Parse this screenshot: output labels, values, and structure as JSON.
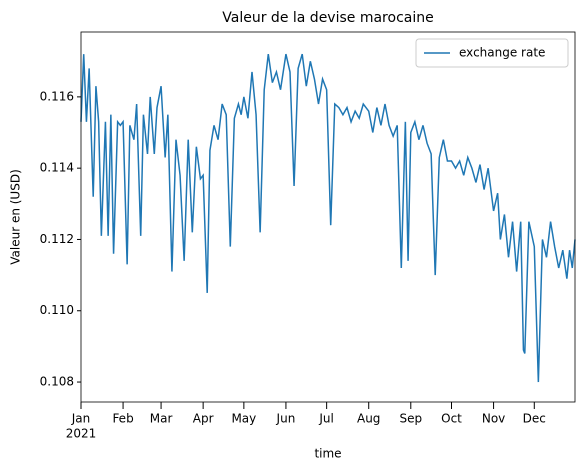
{
  "chart_data": {
    "type": "line",
    "title": "Valeur de la devise marocaine",
    "x_label": "time",
    "y_label": "Valeur en (USD)",
    "year_label": "2021",
    "legend": "upper right",
    "xlim": [
      0,
      364
    ],
    "xticks": [
      {
        "value": 0,
        "label": "Jan"
      },
      {
        "value": 31,
        "label": "Feb"
      },
      {
        "value": 59,
        "label": "Mar"
      },
      {
        "value": 90,
        "label": "Apr"
      },
      {
        "value": 120,
        "label": "May"
      },
      {
        "value": 151,
        "label": "Jun"
      },
      {
        "value": 181,
        "label": "Jul"
      },
      {
        "value": 212,
        "label": "Aug"
      },
      {
        "value": 243,
        "label": "Sep"
      },
      {
        "value": 273,
        "label": "Oct"
      },
      {
        "value": 304,
        "label": "Nov"
      },
      {
        "value": 334,
        "label": "Dec"
      }
    ],
    "ylim": [
      0.10744,
      0.11782
    ],
    "yticks": [
      0.108,
      {
        "value": 0.11,
        "label": "0.110"
      },
      0.112,
      0.114,
      0.116
    ],
    "x": [
      0,
      2,
      4,
      6,
      9,
      11,
      13,
      15,
      18,
      20,
      22,
      24,
      27,
      29,
      31,
      34,
      36,
      39,
      41,
      44,
      46,
      49,
      51,
      54,
      56,
      59,
      62,
      64,
      67,
      70,
      73,
      76,
      79,
      82,
      85,
      88,
      90,
      93,
      95,
      98,
      101,
      104,
      107,
      110,
      113,
      116,
      118,
      120,
      123,
      126,
      129,
      132,
      135,
      138,
      141,
      144,
      147,
      151,
      154,
      157,
      160,
      163,
      166,
      169,
      172,
      175,
      178,
      181,
      184,
      187,
      190,
      193,
      196,
      199,
      202,
      205,
      208,
      212,
      215,
      218,
      221,
      224,
      227,
      230,
      233,
      236,
      239,
      241,
      243,
      246,
      249,
      252,
      255,
      258,
      261,
      264,
      267,
      270,
      273,
      276,
      279,
      282,
      285,
      288,
      291,
      294,
      297,
      300,
      304,
      307,
      309,
      312,
      315,
      318,
      321,
      324,
      326,
      327,
      330,
      334,
      337,
      340,
      343,
      346,
      349,
      352,
      355,
      358,
      360,
      362,
      364
    ],
    "series": [
      {
        "name": "exchange rate",
        "color": "#1f77b4",
        "values": [
          0.1153,
          0.1172,
          0.1153,
          0.1168,
          0.1132,
          0.1163,
          0.1153,
          0.1121,
          0.1153,
          0.1121,
          0.1155,
          0.1116,
          0.1153,
          0.1152,
          0.1153,
          0.1113,
          0.1152,
          0.1148,
          0.1158,
          0.1121,
          0.1155,
          0.1144,
          0.116,
          0.1144,
          0.1157,
          0.1163,
          0.1143,
          0.1155,
          0.1111,
          0.1148,
          0.1138,
          0.1114,
          0.1148,
          0.1122,
          0.1146,
          0.1137,
          0.1138,
          0.1105,
          0.1145,
          0.1152,
          0.1148,
          0.1158,
          0.1155,
          0.1118,
          0.1154,
          0.1158,
          0.1155,
          0.116,
          0.1154,
          0.1167,
          0.1155,
          0.1122,
          0.1162,
          0.1172,
          0.1164,
          0.1167,
          0.1162,
          0.1172,
          0.1167,
          0.1135,
          0.1168,
          0.1172,
          0.1163,
          0.117,
          0.1165,
          0.1158,
          0.1165,
          0.1162,
          0.1124,
          0.1158,
          0.1157,
          0.1155,
          0.1157,
          0.1153,
          0.1156,
          0.1154,
          0.1158,
          0.1156,
          0.115,
          0.1157,
          0.1152,
          0.1158,
          0.1152,
          0.1149,
          0.1152,
          0.1112,
          0.1153,
          0.1114,
          0.115,
          0.1153,
          0.1148,
          0.1152,
          0.1147,
          0.1144,
          0.111,
          0.1143,
          0.1148,
          0.1142,
          0.1142,
          0.114,
          0.1142,
          0.1138,
          0.1143,
          0.114,
          0.1136,
          0.1141,
          0.1134,
          0.114,
          0.1128,
          0.1133,
          0.112,
          0.1127,
          0.1115,
          0.1125,
          0.1111,
          0.1125,
          0.1089,
          0.1088,
          0.1125,
          0.1118,
          0.108,
          0.112,
          0.1115,
          0.1125,
          0.1118,
          0.1112,
          0.1117,
          0.1109,
          0.1117,
          0.1112,
          0.112
        ]
      }
    ]
  }
}
